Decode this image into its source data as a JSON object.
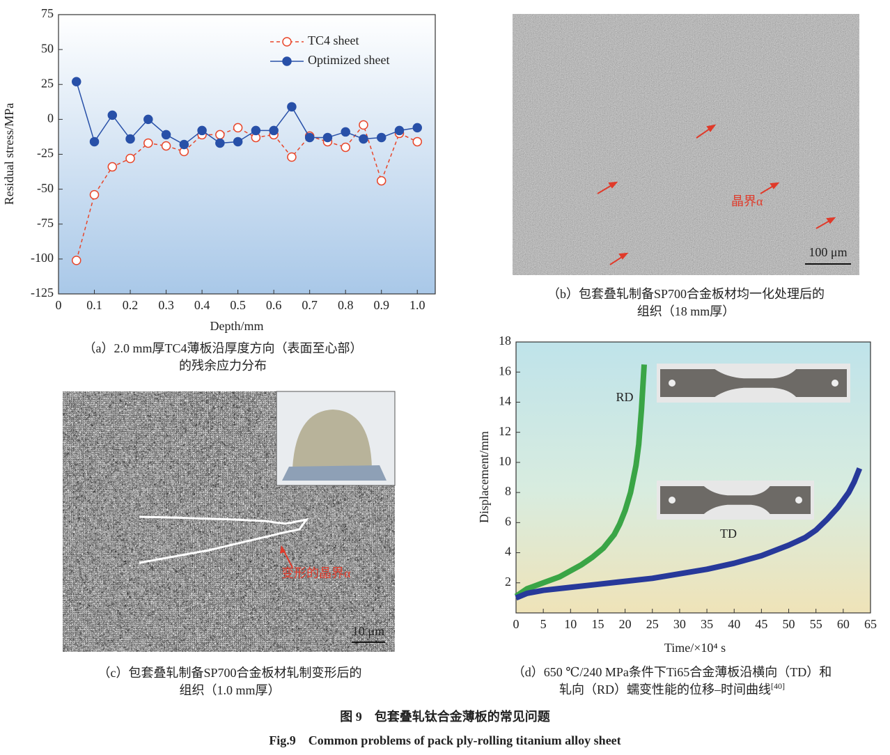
{
  "chart_data": [
    {
      "type": "line",
      "x_label": "Depth/mm",
      "y_label": "Residual stress/MPa",
      "x": [
        0.05,
        0.1,
        0.15,
        0.2,
        0.25,
        0.3,
        0.35,
        0.4,
        0.45,
        0.5,
        0.55,
        0.6,
        0.65,
        0.7,
        0.75,
        0.8,
        0.85,
        0.9,
        0.95,
        1.0
      ],
      "series": [
        {
          "name": "TC4 sheet",
          "color": "#e8462a",
          "dash": true,
          "marker": "open",
          "values": [
            -101,
            -54,
            -34,
            -28,
            -17,
            -19,
            -23,
            -11,
            -11,
            -6,
            -13,
            -11,
            -27,
            -12,
            -16,
            -20,
            -4,
            -44,
            -10,
            -16
          ]
        },
        {
          "name": "Optimized sheet",
          "color": "#2850a8",
          "dash": false,
          "marker": "filled",
          "values": [
            27,
            -16,
            3,
            -14,
            0,
            -11,
            -18,
            -8,
            -17,
            -16,
            -8,
            -8,
            9,
            -13,
            -13,
            -9,
            -14,
            -13,
            -8,
            -6
          ]
        }
      ],
      "xlim": [
        0,
        1.05
      ],
      "xticks": [
        0,
        0.1,
        0.2,
        0.3,
        0.4,
        0.5,
        0.6,
        0.7,
        0.8,
        0.9,
        {
          "value": 1,
          "label": "1.0"
        }
      ],
      "ylim": [
        -125,
        75
      ],
      "yticks": [
        -125,
        -100,
        -75,
        -50,
        -25,
        0,
        25,
        50,
        75
      ],
      "legend": "top",
      "caption": [
        "（a）2.0 mm厚TC4薄板沿厚度方向（表面至心部）",
        "的残余应力分布"
      ]
    },
    {
      "type": "line",
      "x_label": "Time/×10⁴ s",
      "y_label": "Displacement/mm",
      "series": [
        {
          "name": "RD",
          "color": "#3aa546",
          "dash": false,
          "marker": "none",
          "x": [
            0,
            2,
            5,
            8,
            10,
            12,
            14,
            16,
            18,
            19,
            20,
            21,
            22,
            22.5,
            23,
            23.5
          ],
          "values": [
            1.1,
            1.6,
            2.0,
            2.4,
            2.8,
            3.2,
            3.7,
            4.3,
            5.2,
            5.9,
            6.8,
            8.0,
            9.8,
            11.2,
            13.5,
            16.5
          ]
        },
        {
          "name": "TD",
          "color": "#27399a",
          "dash": false,
          "marker": "none",
          "x": [
            0,
            2,
            5,
            10,
            15,
            20,
            25,
            30,
            35,
            40,
            45,
            50,
            53,
            55,
            57,
            59,
            61,
            62,
            63
          ],
          "values": [
            1.0,
            1.3,
            1.5,
            1.7,
            1.9,
            2.1,
            2.3,
            2.6,
            2.9,
            3.3,
            3.8,
            4.5,
            5.0,
            5.5,
            6.2,
            7.0,
            8.0,
            8.7,
            9.6
          ]
        }
      ],
      "xlim": [
        0,
        65
      ],
      "xticks": [
        0,
        5,
        10,
        15,
        20,
        25,
        30,
        35,
        40,
        45,
        50,
        55,
        60,
        65
      ],
      "ylim": [
        0,
        18
      ],
      "yticks": [
        2,
        4,
        6,
        8,
        10,
        12,
        14,
        16,
        18
      ],
      "caption": [
        "（d）650 ℃/240 MPa条件下Ti65合金薄板沿横向（TD）和",
        "轧向（RD）蠕变性能的位移–时间曲线"
      ],
      "caption_ref": "[40]"
    }
  ],
  "panels": {
    "b": {
      "annotation": "晶界α",
      "scale_bar": "100 μm",
      "caption": [
        "（b）包套叠轧制备SP700合金板材均一化处理后的",
        "组织（18 mm厚）"
      ]
    },
    "c": {
      "annotation": "变形的晶界α",
      "scale_bar": "10 μm",
      "caption": [
        "（c）包套叠轧制备SP700合金板材轧制变形后的",
        "组织（1.0 mm厚）"
      ]
    }
  },
  "figure_caption": {
    "zh": "图 9　包套叠轧钛合金薄板的常见问题",
    "en": "Fig.9　Common problems of pack ply-rolling titanium alloy sheet"
  }
}
